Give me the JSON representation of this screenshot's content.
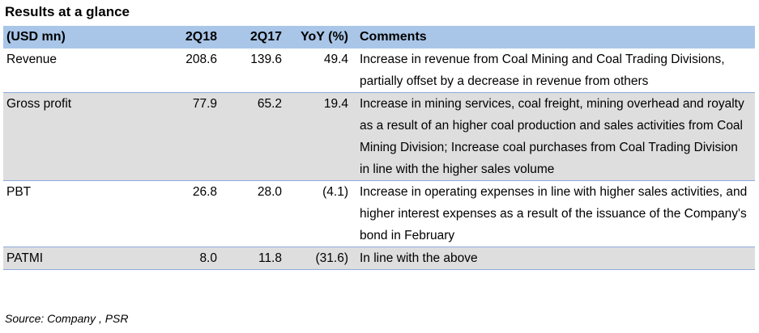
{
  "title": "Results at a glance",
  "headers": {
    "label": "(USD mn)",
    "c1": "2Q18",
    "c2": "2Q17",
    "c3": "YoY (%)",
    "comments": "Comments"
  },
  "rows": [
    {
      "label": "Revenue",
      "q18": "208.6",
      "q17": "139.6",
      "yoy": "49.4",
      "comment": "Increase in revenue from Coal Mining and Coal Trading Divisions, partially offset by a decrease in revenue from others"
    },
    {
      "label": "Gross profit",
      "q18": "77.9",
      "q17": "65.2",
      "yoy": "19.4",
      "comment": "Increase in mining services, coal freight, mining overhead and royalty as a result of an higher coal production and sales activities from Coal Mining Division; Increase coal purchases from Coal Trading Division in line with the higher sales volume"
    },
    {
      "label": "PBT",
      "q18": "26.8",
      "q17": "28.0",
      "yoy": "(4.1)",
      "comment": "Increase in operating expenses in line with higher sales activities, and higher interest expenses as a result of the issuance of the Company's bond in February"
    },
    {
      "label": "PATMI",
      "q18": "8.0",
      "q17": "11.8",
      "yoy": "(31.6)",
      "comment": "In line with the above"
    }
  ],
  "source": "Source: Company , PSR"
}
